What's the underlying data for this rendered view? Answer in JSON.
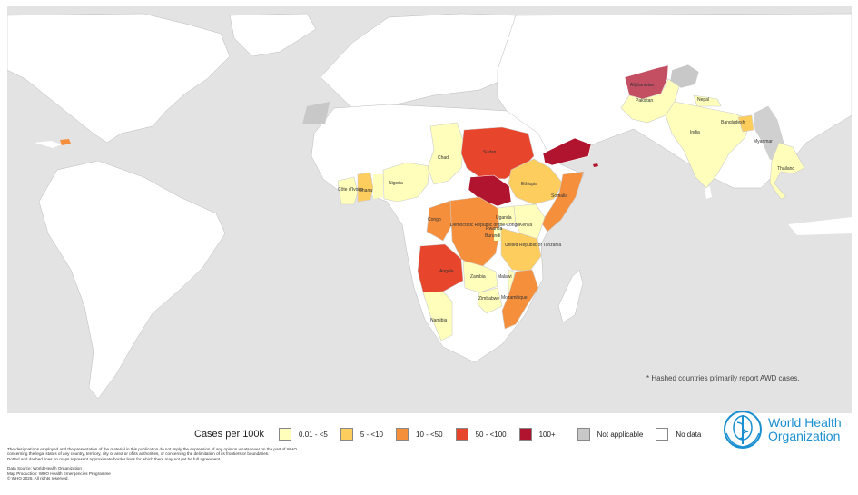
{
  "legend": {
    "title": "Cases per 100k",
    "items": [
      {
        "label": "0.01 - <5",
        "color": "#ffffbb"
      },
      {
        "label": "5 - <10",
        "color": "#fdcd5e"
      },
      {
        "label": "10 - <50",
        "color": "#f68f3c"
      },
      {
        "label": "50 - <100",
        "color": "#e8452d"
      },
      {
        "label": "100+",
        "color": "#b0142e"
      },
      {
        "label": "Not applicable",
        "color": "#c8c8c8"
      },
      {
        "label": "No data",
        "color": "#ffffff"
      }
    ]
  },
  "hatch_note": "* Hashed countries primarily report AWD cases.",
  "who": {
    "line1": "World Health",
    "line2": "Organization"
  },
  "disclaimer": [
    "The designations employed and the presentation of the material in this publication do not imply the expression of any opinion whatsoever on the part of WHO",
    "concerning the legal status of any country, territory, city or area or of its authorities, or concerning the delimitation of its frontiers or boundaries.",
    "Dotted and dashed lines on maps represent approximate border lines for which there may not yet be full agreement."
  ],
  "credits": [
    "Data Source: World Health Organization",
    "Map Production: WHO Health Emergencies Programme",
    "© WHO 2025. All rights reserved."
  ],
  "map": {
    "colors": {
      "ocean": "#e3e3e3",
      "land": "#ffffff",
      "c1": "#ffffbb",
      "c2": "#fdcd5e",
      "c3": "#f68f3c",
      "c4": "#e8452d",
      "c5": "#b0142e",
      "na": "#c8c8c8"
    },
    "country_labels": {
      "afghanistan": "Afghanistan",
      "pakistan": "Pakistan",
      "nepal": "Nepal",
      "india": "India",
      "bangladesh": "Bangladesh",
      "myanmar": "Myanmar",
      "thailand": "Thailand",
      "chad": "Chad",
      "sudan": "Sudan",
      "nigeria": "Nigeria",
      "cote_divoire": "Côte d'Ivoire",
      "ghana": "Ghana",
      "ethiopia": "Ethiopia",
      "somalia": "Somalia",
      "congo": "Congo",
      "drc": "Democratic Republic of the Congo",
      "rwanda": "Rwanda",
      "burundi": "Burundi",
      "uganda": "Uganda",
      "kenya": "Kenya",
      "tanzania": "United Republic of Tanzania",
      "angola": "Angola",
      "zambia": "Zambia",
      "malawi": "Malawi",
      "zimbabwe": "Zimbabwe",
      "mozambique": "Mozambique",
      "namibia": "Namibia"
    }
  }
}
